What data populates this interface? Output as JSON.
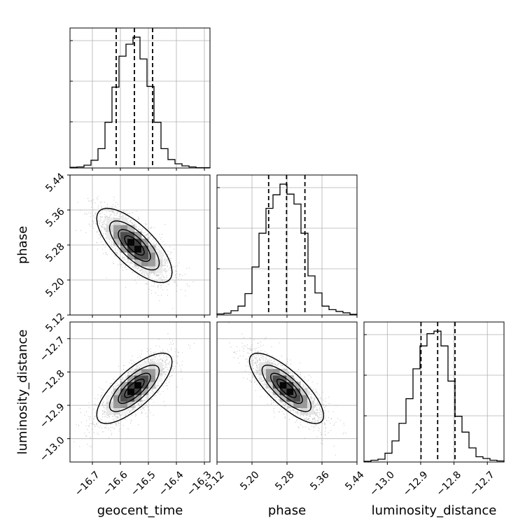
{
  "chart_data": {
    "type": "corner",
    "parameters": [
      {
        "name": "geocent_time",
        "ticks": [
          -16.7,
          -16.6,
          -16.5,
          -16.4,
          -16.3
        ],
        "tick_labels": [
          "−16.7",
          "−16.6",
          "−16.5",
          "−16.4",
          "−16.3"
        ],
        "range": [
          -16.78,
          -16.28
        ],
        "median": -16.55,
        "q16": -16.615,
        "q84": -16.485,
        "sigma": 0.065
      },
      {
        "name": "phase",
        "ticks": [
          5.12,
          5.2,
          5.28,
          5.36,
          5.44
        ],
        "tick_labels": [
          "5.12",
          "5.20",
          "5.28",
          "5.36",
          "5.44"
        ],
        "range": [
          5.12,
          5.44
        ],
        "median": 5.279,
        "q16": 5.238,
        "q84": 5.321,
        "sigma": 0.041
      },
      {
        "name": "luminosity_distance",
        "ticks": [
          -13.0,
          -12.9,
          -12.8,
          -12.7
        ],
        "tick_labels": [
          "−13.0",
          "−12.9",
          "−12.8",
          "−12.7"
        ],
        "range": [
          -13.07,
          -12.65
        ],
        "median": -12.849,
        "q16": -12.899,
        "q84": -12.797,
        "sigma": 0.051
      }
    ],
    "histograms": [
      {
        "param": "geocent_time",
        "bin_edges": [
          -16.78,
          -16.755,
          -16.73,
          -16.705,
          -16.68,
          -16.655,
          -16.63,
          -16.605,
          -16.58,
          -16.555,
          -16.53,
          -16.505,
          -16.48,
          -16.455,
          -16.43,
          -16.405,
          -16.38,
          -16.355,
          -16.33,
          -16.305,
          -16.28
        ],
        "counts": [
          2,
          3,
          8,
          22,
          55,
          130,
          230,
          318,
          352,
          372,
          310,
          232,
          130,
          55,
          24,
          12,
          6,
          3,
          1,
          1
        ]
      },
      {
        "param": "phase",
        "bin_edges": [
          5.12,
          5.136,
          5.152,
          5.168,
          5.184,
          5.2,
          5.216,
          5.232,
          5.248,
          5.264,
          5.28,
          5.296,
          5.312,
          5.328,
          5.344,
          5.36,
          5.376,
          5.392,
          5.408,
          5.424,
          5.44
        ],
        "counts": [
          3,
          5,
          12,
          25,
          60,
          135,
          230,
          300,
          338,
          368,
          340,
          312,
          230,
          110,
          62,
          25,
          15,
          10,
          6,
          2
        ]
      },
      {
        "param": "luminosity_distance",
        "bin_edges": [
          -13.07,
          -13.049,
          -13.028,
          -13.007,
          -12.986,
          -12.965,
          -12.944,
          -12.923,
          -12.902,
          -12.881,
          -12.86,
          -12.839,
          -12.818,
          -12.797,
          -12.776,
          -12.755,
          -12.734,
          -12.713,
          -12.692,
          -12.671,
          -12.65
        ],
        "counts": [
          2,
          5,
          8,
          25,
          60,
          110,
          180,
          265,
          330,
          365,
          372,
          330,
          230,
          130,
          85,
          40,
          15,
          10,
          5,
          3
        ]
      }
    ],
    "scatter_2d": [
      {
        "x": "geocent_time",
        "y": "phase",
        "mean": [
          -16.55,
          5.279
        ],
        "correlation": -0.72
      },
      {
        "x": "geocent_time",
        "y": "luminosity_distance",
        "mean": [
          -16.55,
          -12.849
        ],
        "correlation": 0.75
      },
      {
        "x": "phase",
        "y": "luminosity_distance",
        "mean": [
          5.279,
          -12.849
        ],
        "correlation": -0.78
      }
    ],
    "contour_levels_sigma": [
      0.5,
      1.0,
      1.5,
      2.0
    ],
    "grid": true,
    "colors": {
      "line": "#000000",
      "grid": "#b0b0b0",
      "points": "#555555"
    }
  }
}
